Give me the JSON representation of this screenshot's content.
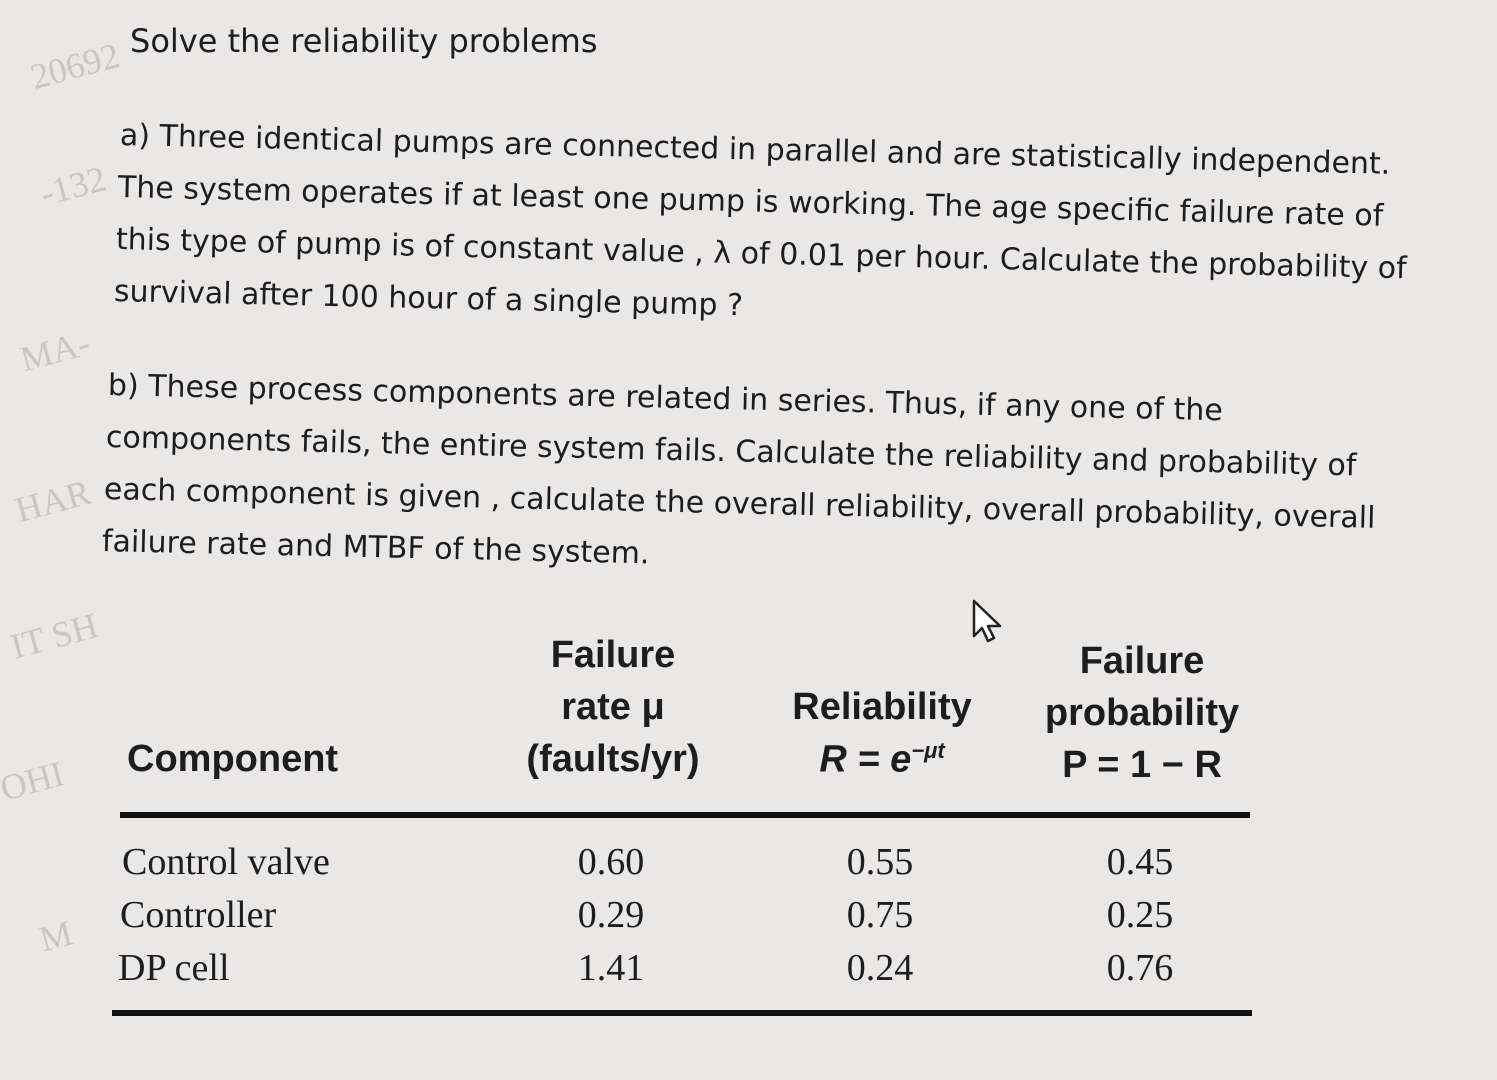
{
  "header": {
    "title": "Solve the reliability problems"
  },
  "watermarks": [
    "20692",
    "-132",
    "MA-",
    "HAR",
    "IT SH",
    "OHI",
    "M"
  ],
  "questions": [
    {
      "lines": [
        "a)  Three identical pumps are connected in parallel and are statistically independent.",
        "The system operates if at least one pump is working. The age specific failure rate of",
        "this type of pump is of constant value , λ of 0.01 per hour. Calculate the probability of",
        "survival after 100 hour of a single pump ?"
      ]
    },
    {
      "lines": [
        "b)  These process components are related in series. Thus, if any one of the",
        "components fails, the entire system fails. Calculate the reliability and probability of",
        "each component is given , calculate the overall reliability, overall probability, overall",
        "failure rate and MTBF of the system."
      ]
    }
  ],
  "table": {
    "headers": [
      {
        "lines": [
          "Component"
        ]
      },
      {
        "lines": [
          "Failure",
          "rate μ",
          "(faults/yr)"
        ]
      },
      {
        "lines": [
          "Reliability"
        ],
        "formula": {
          "text": "R = e",
          "sup": "−μt"
        }
      },
      {
        "lines": [
          "Failure",
          "probability",
          "P = 1 − R"
        ]
      }
    ],
    "rows": [
      [
        "Control valve",
        "0.60",
        "0.55",
        "0.45"
      ],
      [
        "Controller",
        "0.29",
        "0.75",
        "0.25"
      ],
      [
        "DP cell",
        "1.41",
        "0.24",
        "0.76"
      ]
    ]
  }
}
